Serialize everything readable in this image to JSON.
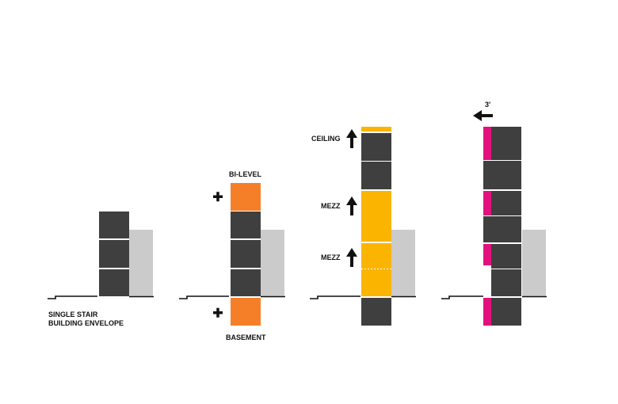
{
  "colors": {
    "floor": "#3f3f3f",
    "neighbor": "#cbcbcb",
    "orange": "#f57f29",
    "yellow": "#fbb400",
    "magenta": "#e2117d",
    "ink": "#111111"
  },
  "labels": {
    "single_stair_line1": "SINGLE STAIR",
    "single_stair_line2": "BUILDING ENVELOPE",
    "bi_level": "BI-LEVEL",
    "basement": "BASEMENT",
    "ceiling": "CEILING",
    "mezz_upper": "MEZZ",
    "mezz_lower": "MEZZ",
    "setback": "3'"
  },
  "icons": {
    "plus": "plus-icon",
    "up_arrow": "arrow-up-icon",
    "left_arrow": "arrow-left-icon"
  }
}
